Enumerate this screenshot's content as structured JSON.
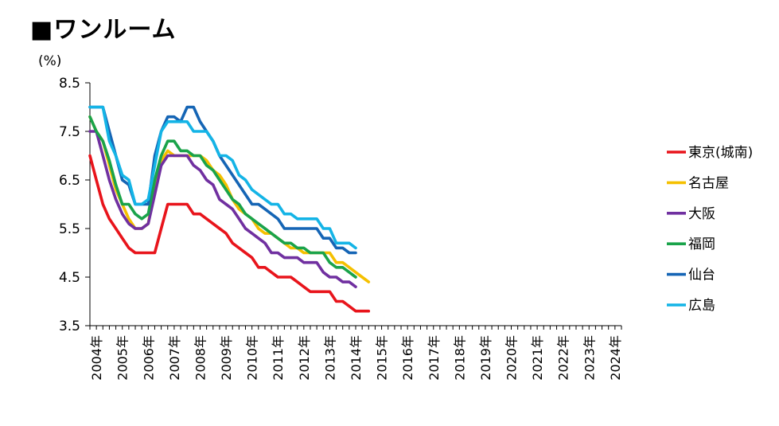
{
  "title": "■ワンルーム",
  "chart_data": {
    "type": "line",
    "title": "■ワンルーム",
    "ylabel": "(%)",
    "xlabel": "",
    "ylim": [
      3.5,
      8.5
    ],
    "yticks": [
      "8.5",
      "7.5",
      "6.5",
      "5.5",
      "4.5",
      "3.5"
    ],
    "ytick_values": [
      8.5,
      7.5,
      6.5,
      5.5,
      4.5,
      3.5
    ],
    "x_start": 2003.75,
    "x_end": 2024.25,
    "x_step": 0.25,
    "x_tick_labels": [
      "2004年",
      "2005年",
      "2006年",
      "2007年",
      "2008年",
      "2009年",
      "2010年",
      "2011年",
      "2012年",
      "2013年",
      "2014年",
      "2015年",
      "2016年",
      "2017年",
      "2018年",
      "2019年",
      "2020年",
      "2021年",
      "2022年",
      "2023年",
      "2024年"
    ],
    "grid": false,
    "legend": "right",
    "series": [
      {
        "name": "東京(城南)",
        "color": "#e8141b",
        "values": [
          7.0,
          6.5,
          6.0,
          5.7,
          5.5,
          5.3,
          5.1,
          5.0,
          5.0,
          5.0,
          5.0,
          5.5,
          6.0,
          6.0,
          6.0,
          6.0,
          5.8,
          5.8,
          5.7,
          5.6,
          5.5,
          5.4,
          5.2,
          5.1,
          5.0,
          4.9,
          4.7,
          4.7,
          4.6,
          4.5,
          4.5,
          4.5,
          4.4,
          4.3,
          4.2,
          4.2,
          4.2,
          4.2,
          4.0,
          4.0,
          3.9,
          3.8,
          3.8,
          3.8
        ]
      },
      {
        "name": "名古屋",
        "color": "#f5c000",
        "values": [
          7.8,
          7.5,
          7.3,
          6.8,
          6.3,
          6.0,
          5.7,
          5.5,
          5.5,
          5.6,
          6.4,
          6.9,
          7.1,
          7.0,
          7.0,
          7.0,
          7.0,
          7.0,
          6.9,
          6.7,
          6.6,
          6.4,
          6.1,
          5.9,
          5.8,
          5.7,
          5.5,
          5.4,
          5.4,
          5.3,
          5.2,
          5.1,
          5.1,
          5.0,
          5.0,
          5.0,
          5.0,
          5.0,
          4.8,
          4.8,
          4.7,
          4.6,
          4.5,
          4.4
        ]
      },
      {
        "name": "大阪",
        "color": "#7030a0",
        "values": [
          7.5,
          7.5,
          7.0,
          6.5,
          6.1,
          5.8,
          5.6,
          5.5,
          5.5,
          5.6,
          6.2,
          6.8,
          7.0,
          7.0,
          7.0,
          7.0,
          6.8,
          6.7,
          6.5,
          6.4,
          6.1,
          6.0,
          5.9,
          5.7,
          5.5,
          5.4,
          5.3,
          5.2,
          5.0,
          5.0,
          4.9,
          4.9,
          4.9,
          4.8,
          4.8,
          4.8,
          4.6,
          4.5,
          4.5,
          4.4,
          4.4,
          4.3
        ]
      },
      {
        "name": "福岡",
        "color": "#1aa34a",
        "values": [
          7.8,
          7.5,
          7.3,
          6.9,
          6.4,
          6.0,
          6.0,
          5.8,
          5.7,
          5.8,
          6.5,
          7.0,
          7.3,
          7.3,
          7.1,
          7.1,
          7.0,
          7.0,
          6.8,
          6.7,
          6.5,
          6.3,
          6.1,
          6.0,
          5.8,
          5.7,
          5.6,
          5.5,
          5.4,
          5.3,
          5.2,
          5.2,
          5.1,
          5.1,
          5.0,
          5.0,
          5.0,
          4.8,
          4.7,
          4.7,
          4.6,
          4.5
        ]
      },
      {
        "name": "仙台",
        "color": "#1565b5",
        "values": [
          8.0,
          8.0,
          8.0,
          7.5,
          7.0,
          6.5,
          6.4,
          6.0,
          6.0,
          6.0,
          7.0,
          7.5,
          7.8,
          7.8,
          7.7,
          8.0,
          8.0,
          7.7,
          7.5,
          7.3,
          7.0,
          6.8,
          6.6,
          6.4,
          6.2,
          6.0,
          6.0,
          5.9,
          5.8,
          5.7,
          5.5,
          5.5,
          5.5,
          5.5,
          5.5,
          5.5,
          5.3,
          5.3,
          5.1,
          5.1,
          5.0,
          5.0
        ]
      },
      {
        "name": "広島",
        "color": "#14b4e6",
        "values": [
          8.0,
          8.0,
          8.0,
          7.3,
          7.0,
          6.6,
          6.5,
          6.0,
          6.0,
          6.1,
          6.8,
          7.5,
          7.7,
          7.7,
          7.7,
          7.7,
          7.5,
          7.5,
          7.5,
          7.3,
          7.0,
          7.0,
          6.9,
          6.6,
          6.5,
          6.3,
          6.2,
          6.1,
          6.0,
          6.0,
          5.8,
          5.8,
          5.7,
          5.7,
          5.7,
          5.7,
          5.5,
          5.5,
          5.2,
          5.2,
          5.2,
          5.1
        ]
      }
    ]
  }
}
